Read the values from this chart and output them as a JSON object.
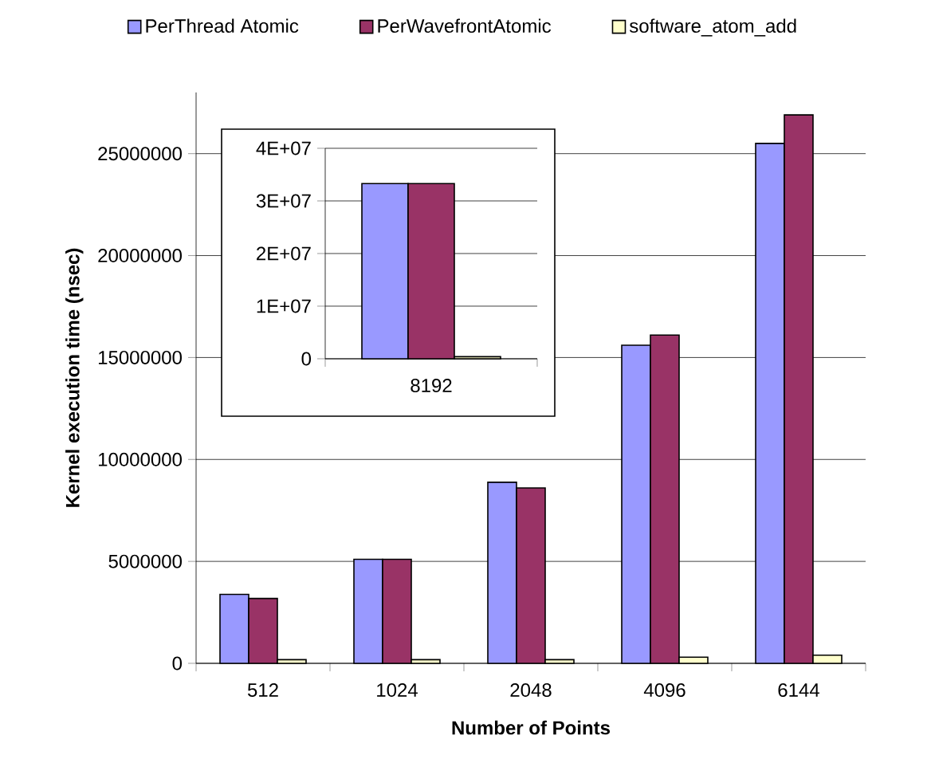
{
  "chart_data": [
    {
      "type": "bar",
      "xlabel": "Number of Points",
      "ylabel": "Kernel execution time (nsec)",
      "categories": [
        "512",
        "1024",
        "2048",
        "4096",
        "6144"
      ],
      "series": [
        {
          "name": "PerThread Atomic",
          "color": "#9999ff",
          "values": [
            3380000,
            5100000,
            8880000,
            15600000,
            25500000
          ]
        },
        {
          "name": "PerWavefrontAtomic",
          "color": "#993366",
          "values": [
            3180000,
            5100000,
            8600000,
            16100000,
            26900000
          ]
        },
        {
          "name": "software_atom_add",
          "color": "#ffffcc",
          "values": [
            180000,
            180000,
            180000,
            300000,
            400000
          ]
        }
      ],
      "ylim": [
        0,
        28000000
      ],
      "yticks": [
        0,
        5000000,
        10000000,
        15000000,
        20000000,
        25000000
      ],
      "grid": "y",
      "legend": "top"
    },
    {
      "type": "bar",
      "categories": [
        "8192"
      ],
      "series": [
        {
          "color": "#9999ff",
          "values": [
            33300000
          ]
        },
        {
          "color": "#993366",
          "values": [
            33300000
          ]
        },
        {
          "color": "#ffffcc",
          "values": [
            400000
          ]
        }
      ],
      "ylim": [
        0,
        40000000
      ],
      "yticks": [
        0,
        {
          "value": 10000000,
          "label": "1E+07"
        },
        {
          "value": 20000000,
          "label": "2E+07"
        },
        {
          "value": 30000000,
          "label": "3E+07"
        },
        {
          "value": 40000000,
          "label": "4E+07"
        }
      ],
      "grid": "y"
    }
  ]
}
